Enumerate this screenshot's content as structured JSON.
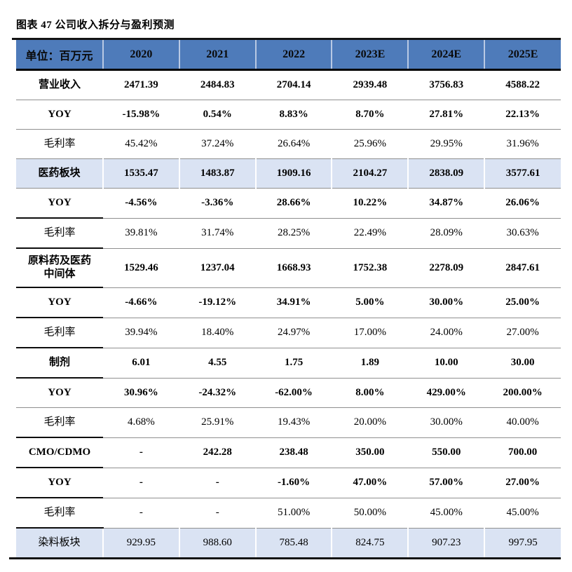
{
  "figure_caption": "图表 47 公司收入拆分与盈利预测",
  "colors": {
    "header_bg": "#4e7bba",
    "header_divider": "#b9c9e4",
    "highlight_row_bg": "#dae3f3",
    "row_divider": "#8f8f8f",
    "rule": "#141414"
  },
  "table": {
    "unit_header": "单位：百万元",
    "year_columns": [
      "2020",
      "2021",
      "2022",
      "2023E",
      "2024E",
      "2025E"
    ],
    "rows": [
      {
        "label": "营业收入",
        "values": [
          "2471.39",
          "2484.83",
          "2704.14",
          "2939.48",
          "3756.83",
          "4588.22"
        ],
        "bold": true,
        "highlight": false,
        "tall": false,
        "thick_label_rule": false
      },
      {
        "label": "YOY",
        "values": [
          "-15.98%",
          "0.54%",
          "8.83%",
          "8.70%",
          "27.81%",
          "22.13%"
        ],
        "bold": true,
        "highlight": false,
        "tall": false,
        "thick_label_rule": false
      },
      {
        "label": "毛利率",
        "values": [
          "45.42%",
          "37.24%",
          "26.64%",
          "25.96%",
          "29.95%",
          "31.96%"
        ],
        "bold": false,
        "highlight": false,
        "tall": false,
        "thick_label_rule": false
      },
      {
        "label": "医药板块",
        "values": [
          "1535.47",
          "1483.87",
          "1909.16",
          "2104.27",
          "2838.09",
          "3577.61"
        ],
        "bold": true,
        "highlight": true,
        "tall": false,
        "thick_label_rule": false
      },
      {
        "label": "YOY",
        "values": [
          "-4.56%",
          "-3.36%",
          "28.66%",
          "10.22%",
          "34.87%",
          "26.06%"
        ],
        "bold": true,
        "highlight": false,
        "tall": false,
        "thick_label_rule": true
      },
      {
        "label": "毛利率",
        "values": [
          "39.81%",
          "31.74%",
          "28.25%",
          "22.49%",
          "28.09%",
          "30.63%"
        ],
        "bold": false,
        "highlight": false,
        "tall": false,
        "thick_label_rule": true
      },
      {
        "label": "原料药及医药中间体",
        "values": [
          "1529.46",
          "1237.04",
          "1668.93",
          "1752.38",
          "2278.09",
          "2847.61"
        ],
        "bold": true,
        "highlight": false,
        "tall": true,
        "thick_label_rule": true
      },
      {
        "label": "YOY",
        "values": [
          "-4.66%",
          "-19.12%",
          "34.91%",
          "5.00%",
          "30.00%",
          "25.00%"
        ],
        "bold": true,
        "highlight": false,
        "tall": false,
        "thick_label_rule": true
      },
      {
        "label": "毛利率",
        "values": [
          "39.94%",
          "18.40%",
          "24.97%",
          "17.00%",
          "24.00%",
          "27.00%"
        ],
        "bold": false,
        "highlight": false,
        "tall": false,
        "thick_label_rule": true
      },
      {
        "label": "制剂",
        "values": [
          "6.01",
          "4.55",
          "1.75",
          "1.89",
          "10.00",
          "30.00"
        ],
        "bold": true,
        "highlight": false,
        "tall": false,
        "thick_label_rule": true
      },
      {
        "label": "YOY",
        "values": [
          "30.96%",
          "-24.32%",
          "-62.00%",
          "8.00%",
          "429.00%",
          "200.00%"
        ],
        "bold": true,
        "highlight": false,
        "tall": false,
        "thick_label_rule": false
      },
      {
        "label": "毛利率",
        "values": [
          "4.68%",
          "25.91%",
          "19.43%",
          "20.00%",
          "30.00%",
          "40.00%"
        ],
        "bold": false,
        "highlight": false,
        "tall": false,
        "thick_label_rule": true
      },
      {
        "label": "CMO/CDMO",
        "values": [
          "-",
          "242.28",
          "238.48",
          "350.00",
          "550.00",
          "700.00"
        ],
        "bold": true,
        "highlight": false,
        "tall": false,
        "thick_label_rule": true
      },
      {
        "label": "YOY",
        "values": [
          "-",
          "-",
          "-1.60%",
          "47.00%",
          "57.00%",
          "27.00%"
        ],
        "bold": true,
        "highlight": false,
        "tall": false,
        "thick_label_rule": true
      },
      {
        "label": "毛利率",
        "values": [
          "-",
          "-",
          "51.00%",
          "50.00%",
          "45.00%",
          "45.00%"
        ],
        "bold": false,
        "highlight": false,
        "tall": false,
        "thick_label_rule": true
      },
      {
        "label": "染料板块",
        "values": [
          "929.95",
          "988.60",
          "785.48",
          "824.75",
          "907.23",
          "997.95"
        ],
        "bold": false,
        "highlight": true,
        "tall": false,
        "thick_label_rule": false
      }
    ]
  }
}
